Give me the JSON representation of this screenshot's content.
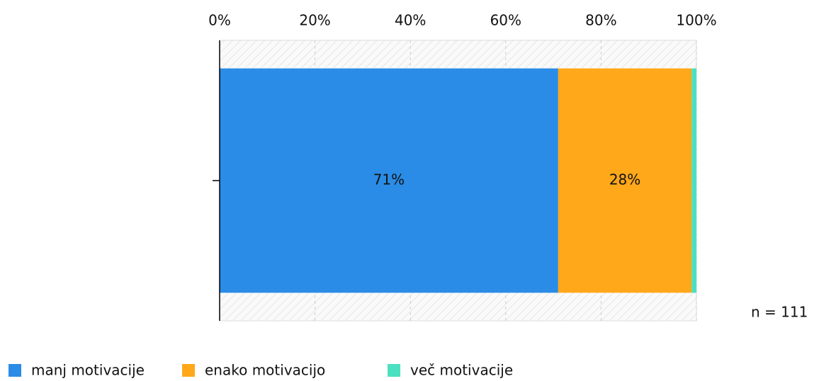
{
  "chart_data": {
    "type": "stacked-bar-horizontal",
    "categories": [
      null
    ],
    "series": [
      {
        "name": "manj motivacije",
        "color": "#2a8ce6",
        "values": [
          71
        ],
        "value_labels": [
          "71%"
        ]
      },
      {
        "name": "enako motivacijo",
        "color": "#ffa81a",
        "values": [
          28
        ],
        "value_labels": [
          "28%"
        ]
      },
      {
        "name": "več motivacije",
        "color": "#4ce0c0",
        "values": [
          1
        ]
      }
    ],
    "xlim": [
      0,
      100
    ],
    "xticks": [
      {
        "value": 0,
        "label": "0%"
      },
      {
        "value": 20,
        "label": "20%"
      },
      {
        "value": 40,
        "label": "40%"
      },
      {
        "value": 60,
        "label": "60%"
      },
      {
        "value": 80,
        "label": "80%"
      },
      {
        "value": 100,
        "label": "100%"
      }
    ],
    "grid": true,
    "annotation": "n = 111",
    "legend": "bottom-left"
  }
}
